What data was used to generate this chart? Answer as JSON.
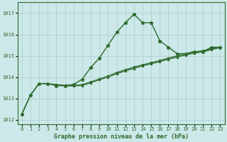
{
  "xlabel": "Graphe pression niveau de la mer (hPa)",
  "background_color": "#cce8e8",
  "grid_color": "#aacccc",
  "line_color": "#2d6a2d",
  "x_ticks": [
    0,
    1,
    2,
    3,
    4,
    5,
    6,
    7,
    8,
    9,
    10,
    11,
    12,
    13,
    14,
    15,
    16,
    17,
    18,
    19,
    20,
    21,
    22,
    23
  ],
  "ylim": [
    1011.8,
    1017.5
  ],
  "yticks": [
    1012,
    1013,
    1014,
    1015,
    1016,
    1017
  ],
  "series": [
    [
      1012.25,
      1013.15,
      1013.7,
      1013.7,
      1013.6,
      1013.6,
      1013.65,
      1013.9,
      1014.45,
      1014.9,
      1015.5,
      1016.1,
      1016.55,
      1016.95,
      1016.55,
      1016.55,
      1015.7,
      1015.4,
      1015.1,
      1015.1,
      1015.2,
      1015.2,
      1015.4,
      1015.4
    ],
    [
      1012.25,
      1013.15,
      1013.7,
      1013.7,
      1013.65,
      1013.62,
      1013.62,
      1013.62,
      1013.75,
      1013.88,
      1014.0,
      1014.15,
      1014.28,
      1014.4,
      1014.52,
      1014.62,
      1014.72,
      1014.83,
      1014.93,
      1015.03,
      1015.12,
      1015.18,
      1015.28,
      1015.38
    ],
    [
      1012.25,
      1013.15,
      1013.7,
      1013.68,
      1013.64,
      1013.6,
      1013.6,
      1013.65,
      1013.78,
      1013.92,
      1014.06,
      1014.22,
      1014.35,
      1014.47,
      1014.58,
      1014.68,
      1014.78,
      1014.9,
      1015.0,
      1015.1,
      1015.18,
      1015.24,
      1015.34,
      1015.42
    ],
    [
      1012.25,
      1013.15,
      1013.7,
      1013.67,
      1013.62,
      1013.58,
      1013.58,
      1013.6,
      1013.73,
      1013.87,
      1014.0,
      1014.18,
      1014.32,
      1014.44,
      1014.55,
      1014.65,
      1014.75,
      1014.86,
      1014.96,
      1015.06,
      1015.15,
      1015.21,
      1015.31,
      1015.4
    ]
  ]
}
